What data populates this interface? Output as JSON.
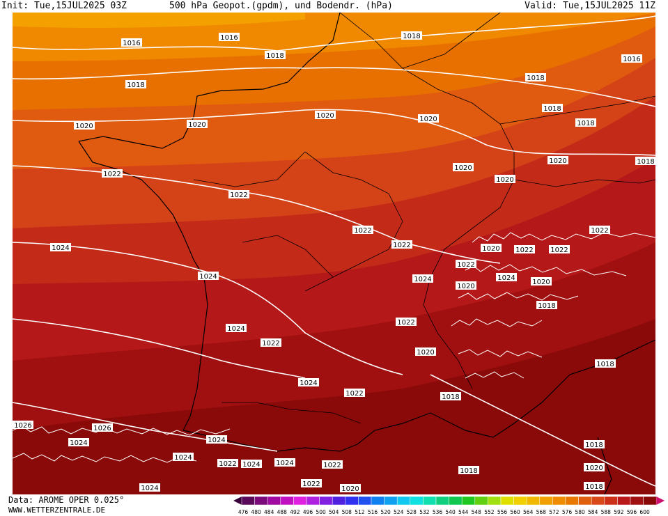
{
  "header": {
    "init": "Init: Tue,15JUL2025 03Z",
    "title": "500 hPa Geopot.(gpdm), und Bodendr. (hPa)",
    "valid": "Valid: Tue,15JUL2025 11Z"
  },
  "footer": {
    "model": "Data: AROME OPER 0.025°",
    "site": "WWW.WETTERZENTRALE.DE"
  },
  "legend": {
    "ticks": [
      "476",
      "480",
      "484",
      "488",
      "492",
      "496",
      "500",
      "504",
      "508",
      "512",
      "516",
      "520",
      "524",
      "528",
      "532",
      "536",
      "540",
      "544",
      "548",
      "552",
      "556",
      "560",
      "564",
      "568",
      "572",
      "576",
      "580",
      "584",
      "588",
      "592",
      "596",
      "600"
    ],
    "colors": [
      "#5a0a5a",
      "#7a0a7a",
      "#a00aa0",
      "#c010c0",
      "#e020e0",
      "#b020e0",
      "#8020e0",
      "#5020e0",
      "#3030f0",
      "#2050f0",
      "#1080f0",
      "#10a0f0",
      "#10c8f0",
      "#10e0e0",
      "#10e0b0",
      "#10d080",
      "#10c850",
      "#20c820",
      "#60d010",
      "#a0e010",
      "#e0e000",
      "#f0d000",
      "#f0b800",
      "#f0a000",
      "#f08c00",
      "#e87800",
      "#e06010",
      "#d84818",
      "#cc3018",
      "#b81818",
      "#a01010",
      "#880808",
      "#cc1070"
    ]
  },
  "isobar_labels": [
    {
      "text": "1016"
    },
    {
      "text": "1016"
    },
    {
      "text": "1018"
    },
    {
      "text": "1018"
    },
    {
      "text": "1018"
    },
    {
      "text": "1016"
    },
    {
      "text": "1018"
    },
    {
      "text": "1018"
    },
    {
      "text": "1020"
    },
    {
      "text": "1020"
    },
    {
      "text": "1020"
    },
    {
      "text": "1018"
    },
    {
      "text": "1020"
    },
    {
      "text": "1022"
    },
    {
      "text": "1020"
    },
    {
      "text": "1020"
    },
    {
      "text": "1018"
    },
    {
      "text": "1022"
    },
    {
      "text": "1020"
    },
    {
      "text": "1022"
    },
    {
      "text": "1024"
    },
    {
      "text": "1022"
    },
    {
      "text": "1022"
    },
    {
      "text": "1024"
    },
    {
      "text": "1020"
    },
    {
      "text": "1022"
    },
    {
      "text": "1022"
    },
    {
      "text": "1024"
    },
    {
      "text": "1022"
    },
    {
      "text": "1020"
    },
    {
      "text": "1024"
    },
    {
      "text": "1020"
    },
    {
      "text": "1018"
    },
    {
      "text": "1022"
    },
    {
      "text": "1024"
    },
    {
      "text": "1022"
    },
    {
      "text": "1020"
    },
    {
      "text": "1018"
    },
    {
      "text": "1018"
    },
    {
      "text": "1024"
    },
    {
      "text": "1026"
    },
    {
      "text": "1024"
    },
    {
      "text": "1026"
    },
    {
      "text": "1024"
    },
    {
      "text": "1022"
    },
    {
      "text": "1024"
    },
    {
      "text": "1024"
    },
    {
      "text": "1024"
    },
    {
      "text": "1022"
    },
    {
      "text": "1022"
    },
    {
      "text": "1024"
    },
    {
      "text": "1022"
    },
    {
      "text": "1020"
    },
    {
      "text": "1018"
    },
    {
      "text": "1018"
    },
    {
      "text": "1020"
    },
    {
      "text": "1018"
    }
  ]
}
